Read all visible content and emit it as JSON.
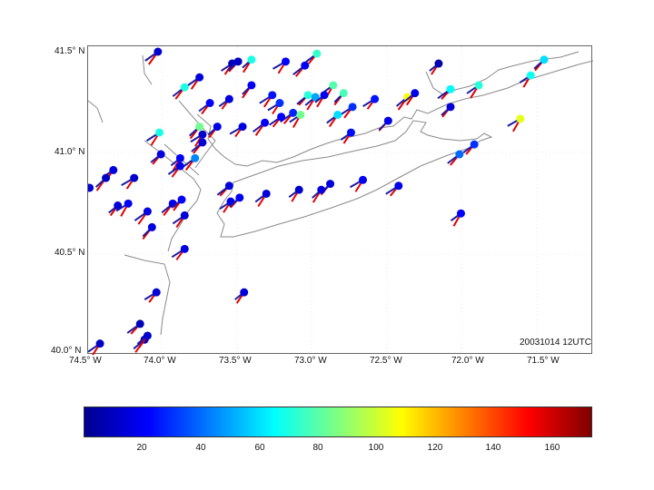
{
  "map": {
    "timestamp": "20031014 12UTC",
    "lat_labels": [
      "41.5° N",
      "41.0° N",
      "40.5° N",
      "40.0° N"
    ],
    "lon_labels": [
      "74.5° W",
      "74.0° W",
      "73.5° W",
      "73.0° W",
      "72.5° W",
      "72.0° W",
      "71.5° W"
    ],
    "lon_range": [
      -74.5,
      -71.1
    ],
    "lat_range": [
      40.0,
      41.5
    ]
  },
  "colorbar": {
    "ticks": [
      "20",
      "40",
      "60",
      "80",
      "100",
      "120",
      "140",
      "160"
    ],
    "range": [
      0,
      175
    ],
    "colors": [
      "#00008f",
      "#0000ff",
      "#0080ff",
      "#00ffff",
      "#80ff80",
      "#ffff00",
      "#ff8000",
      "#ff0000",
      "#800000"
    ]
  },
  "stations": [
    {
      "lon": -74.03,
      "lat": 41.5,
      "v": 12
    },
    {
      "lon": -73.75,
      "lat": 41.37,
      "v": 15
    },
    {
      "lon": -73.53,
      "lat": 41.44,
      "v": 8
    },
    {
      "lon": -73.49,
      "lat": 41.45,
      "v": 10
    },
    {
      "lon": -73.4,
      "lat": 41.46,
      "v": 70
    },
    {
      "lon": -73.17,
      "lat": 41.45,
      "v": 22
    },
    {
      "lon": -73.04,
      "lat": 41.43,
      "v": 20
    },
    {
      "lon": -72.96,
      "lat": 41.49,
      "v": 75
    },
    {
      "lon": -72.85,
      "lat": 41.33,
      "v": 80
    },
    {
      "lon": -72.78,
      "lat": 41.29,
      "v": 78
    },
    {
      "lon": -72.72,
      "lat": 41.22,
      "v": 30
    },
    {
      "lon": -72.57,
      "lat": 41.26,
      "v": 25
    },
    {
      "lon": -72.35,
      "lat": 41.27,
      "v": 110
    },
    {
      "lon": -72.3,
      "lat": 41.29,
      "v": 18
    },
    {
      "lon": -72.14,
      "lat": 41.44,
      "v": 6
    },
    {
      "lon": -72.06,
      "lat": 41.31,
      "v": 65
    },
    {
      "lon": -71.87,
      "lat": 41.33,
      "v": 72
    },
    {
      "lon": -71.52,
      "lat": 41.38,
      "v": 68
    },
    {
      "lon": -71.43,
      "lat": 41.46,
      "v": 60
    },
    {
      "lon": -72.06,
      "lat": 41.22,
      "v": 14
    },
    {
      "lon": -71.59,
      "lat": 41.16,
      "v": 105
    },
    {
      "lon": -73.85,
      "lat": 41.32,
      "v": 70
    },
    {
      "lon": -73.68,
      "lat": 41.24,
      "v": 22
    },
    {
      "lon": -73.55,
      "lat": 41.26,
      "v": 16
    },
    {
      "lon": -73.4,
      "lat": 41.33,
      "v": 20
    },
    {
      "lon": -73.26,
      "lat": 41.28,
      "v": 25
    },
    {
      "lon": -73.21,
      "lat": 41.24,
      "v": 30
    },
    {
      "lon": -73.02,
      "lat": 41.28,
      "v": 72
    },
    {
      "lon": -72.97,
      "lat": 41.27,
      "v": 50
    },
    {
      "lon": -72.91,
      "lat": 41.28,
      "v": 18
    },
    {
      "lon": -73.12,
      "lat": 41.19,
      "v": 28
    },
    {
      "lon": -73.2,
      "lat": 41.17,
      "v": 22
    },
    {
      "lon": -73.07,
      "lat": 41.18,
      "v": 85
    },
    {
      "lon": -73.75,
      "lat": 41.12,
      "v": 85
    },
    {
      "lon": -73.63,
      "lat": 41.12,
      "v": 18
    },
    {
      "lon": -73.46,
      "lat": 41.12,
      "v": 16
    },
    {
      "lon": -73.31,
      "lat": 41.14,
      "v": 20
    },
    {
      "lon": -72.82,
      "lat": 41.18,
      "v": 60
    },
    {
      "lon": -72.73,
      "lat": 41.09,
      "v": 24
    },
    {
      "lon": -72.48,
      "lat": 41.15,
      "v": 18
    },
    {
      "lon": -74.02,
      "lat": 41.09,
      "v": 70
    },
    {
      "lon": -73.73,
      "lat": 41.08,
      "v": 12
    },
    {
      "lon": -73.73,
      "lat": 41.04,
      "v": 14
    },
    {
      "lon": -74.01,
      "lat": 40.98,
      "v": 16
    },
    {
      "lon": -73.88,
      "lat": 40.96,
      "v": 20
    },
    {
      "lon": -73.78,
      "lat": 40.96,
      "v": 45
    },
    {
      "lon": -73.88,
      "lat": 40.92,
      "v": 18
    },
    {
      "lon": -74.33,
      "lat": 40.9,
      "v": 16
    },
    {
      "lon": -74.38,
      "lat": 40.86,
      "v": 10
    },
    {
      "lon": -74.49,
      "lat": 40.81,
      "v": 14
    },
    {
      "lon": -74.19,
      "lat": 40.86,
      "v": 12
    },
    {
      "lon": -73.55,
      "lat": 40.82,
      "v": 16
    },
    {
      "lon": -73.3,
      "lat": 40.78,
      "v": 14
    },
    {
      "lon": -73.08,
      "lat": 40.8,
      "v": 12
    },
    {
      "lon": -72.87,
      "lat": 40.83,
      "v": 15
    },
    {
      "lon": -72.41,
      "lat": 40.82,
      "v": 18
    },
    {
      "lon": -74.23,
      "lat": 40.73,
      "v": 20
    },
    {
      "lon": -73.93,
      "lat": 40.73,
      "v": 18
    },
    {
      "lon": -73.87,
      "lat": 40.75,
      "v": 22
    },
    {
      "lon": -74.3,
      "lat": 40.72,
      "v": 14
    },
    {
      "lon": -74.1,
      "lat": 40.69,
      "v": 16
    },
    {
      "lon": -73.85,
      "lat": 40.67,
      "v": 14
    },
    {
      "lon": -73.54,
      "lat": 40.74,
      "v": 18
    },
    {
      "lon": -73.48,
      "lat": 40.76,
      "v": 20
    },
    {
      "lon": -72.93,
      "lat": 40.8,
      "v": 16
    },
    {
      "lon": -72.65,
      "lat": 40.85,
      "v": 20
    },
    {
      "lon": -72.0,
      "lat": 40.98,
      "v": 40
    },
    {
      "lon": -71.9,
      "lat": 41.03,
      "v": 30
    },
    {
      "lon": -71.99,
      "lat": 40.68,
      "v": 22
    },
    {
      "lon": -74.07,
      "lat": 40.61,
      "v": 16
    },
    {
      "lon": -73.85,
      "lat": 40.5,
      "v": 16
    },
    {
      "lon": -74.04,
      "lat": 40.28,
      "v": 14
    },
    {
      "lon": -74.12,
      "lat": 40.04,
      "v": 10
    },
    {
      "lon": -74.1,
      "lat": 40.06,
      "v": 12
    },
    {
      "lon": -73.45,
      "lat": 40.28,
      "v": 14
    },
    {
      "lon": -74.15,
      "lat": 40.12,
      "v": 8
    },
    {
      "lon": -74.42,
      "lat": 40.02,
      "v": 10
    }
  ]
}
